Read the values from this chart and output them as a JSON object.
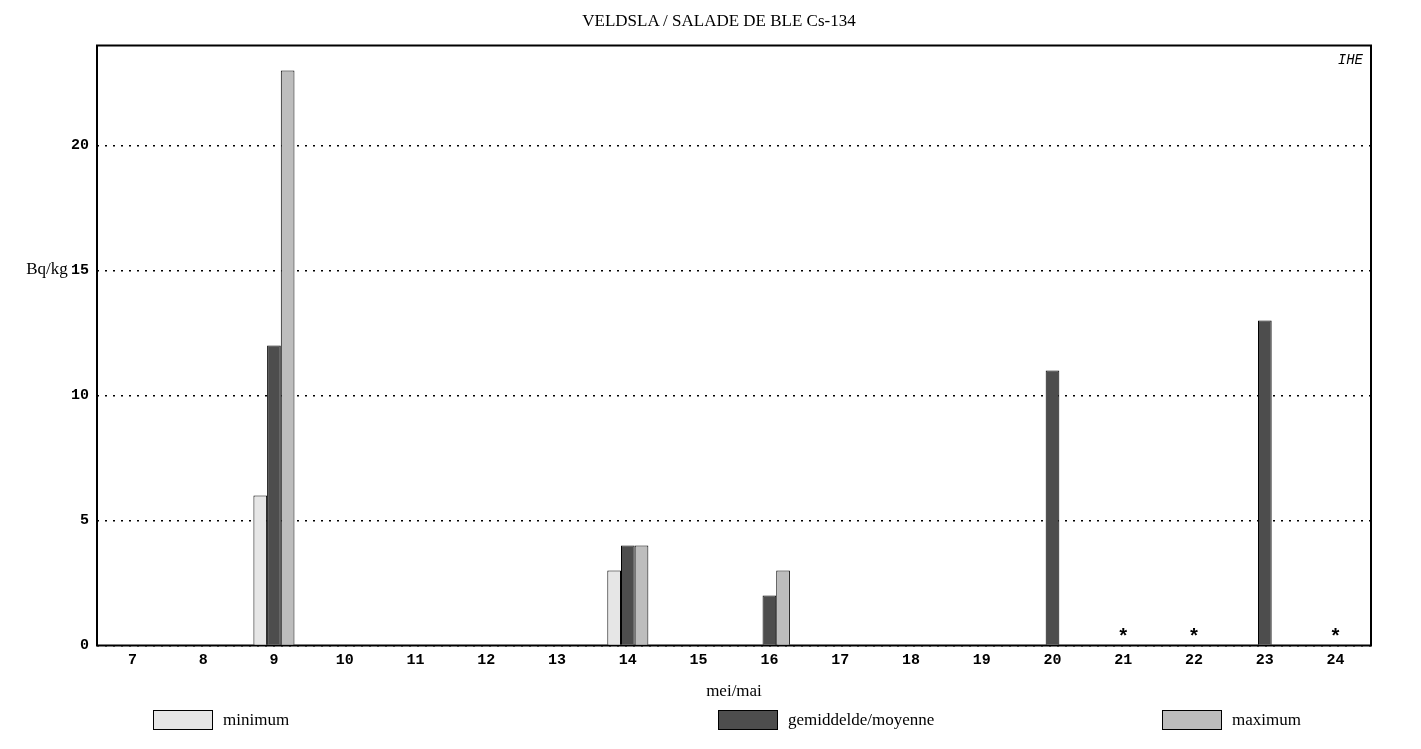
{
  "chart_data": {
    "type": "bar",
    "title": "VELDSLA / SALADE DE BLE Cs-134",
    "xlabel": "mei/mai",
    "ylabel": "Bq/kg",
    "categories": [
      "7",
      "8",
      "9",
      "10",
      "11",
      "12",
      "13",
      "14",
      "15",
      "16",
      "17",
      "18",
      "19",
      "20",
      "21",
      "22",
      "23",
      "24"
    ],
    "series": [
      {
        "name": "minimum",
        "color": "#e6e6e6",
        "values": [
          null,
          null,
          6,
          null,
          null,
          null,
          null,
          3,
          null,
          null,
          null,
          null,
          null,
          null,
          null,
          null,
          null,
          null
        ]
      },
      {
        "name": "gemiddelde/moyenne",
        "color": "#4d4d4d",
        "values": [
          null,
          null,
          12,
          null,
          null,
          null,
          null,
          4,
          null,
          2,
          null,
          null,
          null,
          11,
          0,
          0,
          13,
          0
        ],
        "value_labels": [
          null,
          null,
          null,
          null,
          null,
          null,
          null,
          null,
          null,
          null,
          null,
          null,
          null,
          null,
          "*",
          "*",
          null,
          "*"
        ]
      },
      {
        "name": "maximum",
        "color": "#bdbdbd",
        "values": [
          null,
          null,
          23,
          null,
          null,
          null,
          null,
          4,
          null,
          3,
          null,
          null,
          null,
          null,
          null,
          null,
          null,
          null
        ]
      }
    ],
    "ylim": [
      0,
      24
    ],
    "yticks": [
      0,
      5,
      10,
      15,
      20
    ],
    "grid": "y",
    "legend": "bottom",
    "annotations": [
      "IHE"
    ]
  }
}
